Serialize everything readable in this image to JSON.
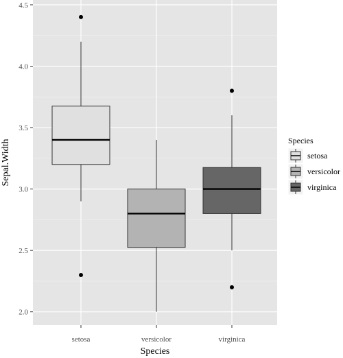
{
  "chart_data": {
    "type": "boxplot",
    "title": "",
    "xlabel": "Species",
    "ylabel": "Sepal.Width",
    "categories": [
      "setosa",
      "versicolor",
      "virginica"
    ],
    "ylim": [
      1.92,
      4.5
    ],
    "yticks": [
      "2.0",
      "2.5",
      "3.0",
      "3.5",
      "4.0",
      "4.5"
    ],
    "grid": true,
    "legend": {
      "title": "Species",
      "position": "right",
      "entries": [
        "setosa",
        "versicolor",
        "virginica"
      ]
    },
    "boxes": [
      {
        "category": "setosa",
        "whisker_low": 2.9,
        "q1": 3.2,
        "median": 3.4,
        "q3": 3.675,
        "whisker_high": 4.2,
        "outliers": [
          4.4,
          2.3
        ],
        "fill": "#e0e0e0"
      },
      {
        "category": "versicolor",
        "whisker_low": 2.0,
        "q1": 2.525,
        "median": 2.8,
        "q3": 3.0,
        "whisker_high": 3.4,
        "outliers": [],
        "fill": "#b3b3b3"
      },
      {
        "category": "virginica",
        "whisker_low": 2.5,
        "q1": 2.8,
        "median": 3.0,
        "q3": 3.175,
        "whisker_high": 3.6,
        "outliers": [
          3.8,
          2.2
        ],
        "fill": "#666666"
      }
    ],
    "colors": {
      "panel": "#e5e5e5",
      "grid_major": "#ffffff",
      "grid_minor": "#f2f2f2"
    }
  }
}
